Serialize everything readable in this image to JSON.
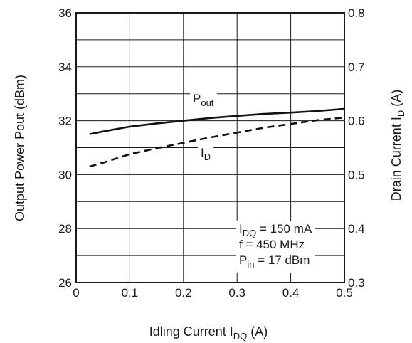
{
  "chart_data": {
    "type": "line",
    "x_axis": {
      "label_main": "Idling Current  I",
      "label_sub": "DQ",
      "label_unit": " (A)",
      "range": [
        0,
        0.5
      ],
      "ticks": [
        "0",
        "0.1",
        "0.2",
        "0.3",
        "0.4",
        "0.5"
      ]
    },
    "y_axis_left": {
      "label": "Output Power  Pout  (dBm)",
      "range": [
        26,
        36
      ],
      "ticks": [
        "26",
        "28",
        "30",
        "32",
        "34",
        "36"
      ]
    },
    "y_axis_right": {
      "label_main": "Drain Current  I",
      "label_sub": "D",
      "label_unit": "  (A)",
      "range": [
        0.3,
        0.8
      ],
      "ticks": [
        "0.3",
        "0.4",
        "0.5",
        "0.6",
        "0.7",
        "0.8"
      ]
    },
    "grid": true,
    "series": [
      {
        "name_main": "P",
        "name_sub": "out",
        "axis": "left",
        "style": "solid",
        "x": [
          0.025,
          0.05,
          0.1,
          0.15,
          0.2,
          0.25,
          0.3,
          0.35,
          0.4,
          0.45,
          0.5
        ],
        "y": [
          31.5,
          31.6,
          31.78,
          31.9,
          32.0,
          32.1,
          32.18,
          32.25,
          32.3,
          32.36,
          32.44
        ]
      },
      {
        "name_main": "I",
        "name_sub": "D",
        "axis": "right",
        "style": "dashed",
        "x": [
          0.025,
          0.05,
          0.1,
          0.15,
          0.2,
          0.25,
          0.3,
          0.35,
          0.4,
          0.45,
          0.5
        ],
        "y": [
          0.515,
          0.522,
          0.538,
          0.549,
          0.559,
          0.569,
          0.578,
          0.587,
          0.594,
          0.601,
          0.606
        ]
      }
    ],
    "conditions": [
      {
        "main": "I",
        "sub": "DQ",
        "rest": " = 150 mA"
      },
      {
        "main": "f = 450 MHz",
        "sub": "",
        "rest": ""
      },
      {
        "main": "P",
        "sub": "in",
        "rest": " = 17 dBm"
      }
    ]
  }
}
